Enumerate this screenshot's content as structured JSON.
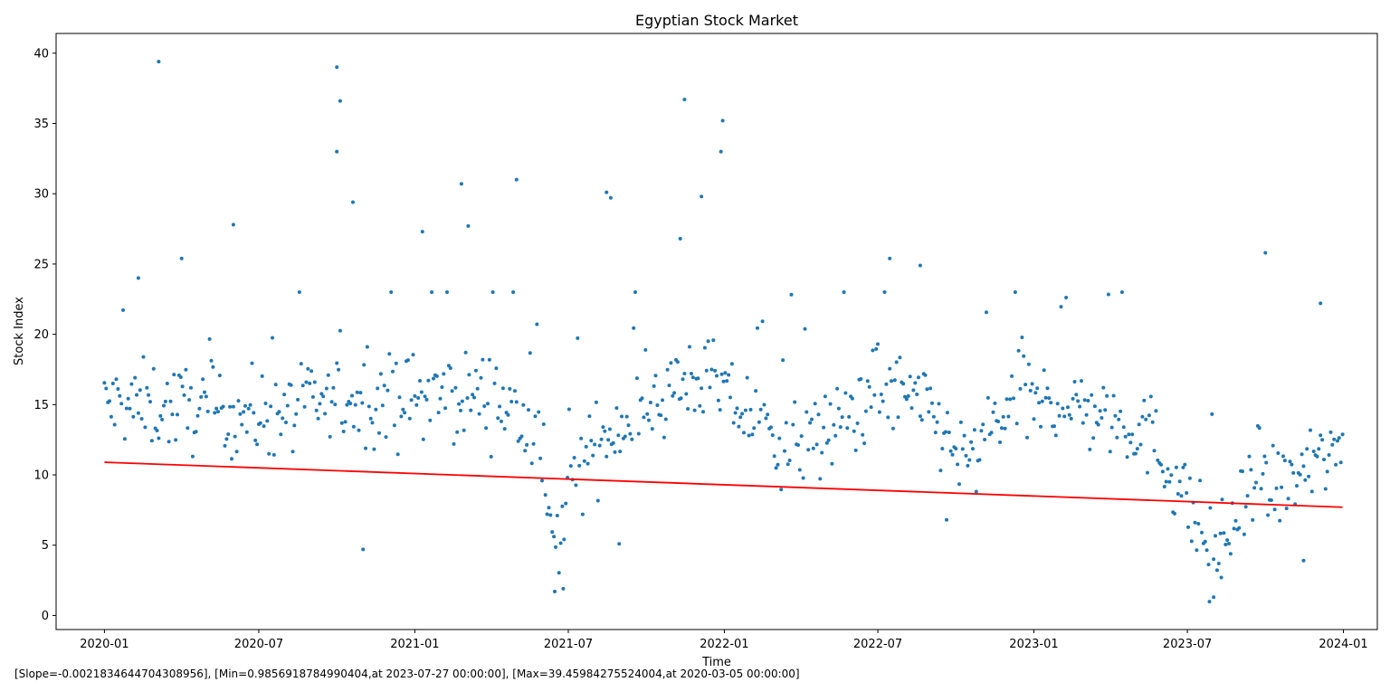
{
  "chart_data": {
    "type": "scatter",
    "title": "Egyptian Stock Market",
    "xlabel": "Time",
    "ylabel": "Stock Index",
    "xlim": [
      "2019-11-05",
      "2024-02-10"
    ],
    "ylim": [
      -1.0,
      41.4
    ],
    "x_ticks": [
      "2020-01",
      "2020-07",
      "2021-01",
      "2021-07",
      "2022-01",
      "2022-07",
      "2023-01",
      "2023-07",
      "2024-01"
    ],
    "y_ticks": [
      0,
      5,
      10,
      15,
      20,
      25,
      30,
      35,
      40
    ],
    "grid": false,
    "marker_color": "#1f77b4",
    "trend_color": "#ff0000",
    "trend_line": {
      "start": [
        "2020-01-01",
        10.9
      ],
      "end": [
        "2023-12-31",
        7.7
      ]
    },
    "outliers": [
      {
        "date": "2020-03-05",
        "value": 39.4
      },
      {
        "date": "2020-10-01",
        "value": 39.0
      },
      {
        "date": "2020-10-05",
        "value": 36.6
      },
      {
        "date": "2021-11-15",
        "value": 36.7
      },
      {
        "date": "2021-12-30",
        "value": 35.2
      },
      {
        "date": "2021-12-28",
        "value": 33.0
      },
      {
        "date": "2020-10-01",
        "value": 33.0
      },
      {
        "date": "2021-05-01",
        "value": 31.0
      },
      {
        "date": "2021-02-25",
        "value": 30.7
      },
      {
        "date": "2021-08-15",
        "value": 30.1
      },
      {
        "date": "2021-08-20",
        "value": 29.7
      },
      {
        "date": "2020-10-20",
        "value": 29.4
      },
      {
        "date": "2021-12-05",
        "value": 29.8
      },
      {
        "date": "2020-06-01",
        "value": 27.8
      },
      {
        "date": "2021-03-05",
        "value": 27.7
      },
      {
        "date": "2021-01-10",
        "value": 27.3
      },
      {
        "date": "2021-11-10",
        "value": 26.8
      },
      {
        "date": "2020-02-10",
        "value": 24.0
      },
      {
        "date": "2020-04-01",
        "value": 25.4
      },
      {
        "date": "2023-10-01",
        "value": 25.8
      },
      {
        "date": "2022-07-15",
        "value": 25.4
      },
      {
        "date": "2022-08-20",
        "value": 24.9
      },
      {
        "date": "2021-06-15",
        "value": 1.7
      },
      {
        "date": "2021-06-25",
        "value": 1.9
      },
      {
        "date": "2023-07-27",
        "value": 0.99
      },
      {
        "date": "2023-08-01",
        "value": 1.3
      },
      {
        "date": "2023-08-10",
        "value": 2.7
      },
      {
        "date": "2020-11-01",
        "value": 4.7
      },
      {
        "date": "2023-11-15",
        "value": 3.9
      },
      {
        "date": "2021-08-30",
        "value": 5.1
      },
      {
        "date": "2022-09-20",
        "value": 6.8
      },
      {
        "date": "2023-12-05",
        "value": 22.2
      }
    ]
  },
  "footnote": "[Slope=-0.0021834644704308956], [Min=0.9856918784990404,at 2023-07-27 00:00:00], [Max=39.45984275524004,at 2020-03-05 00:00:00]"
}
